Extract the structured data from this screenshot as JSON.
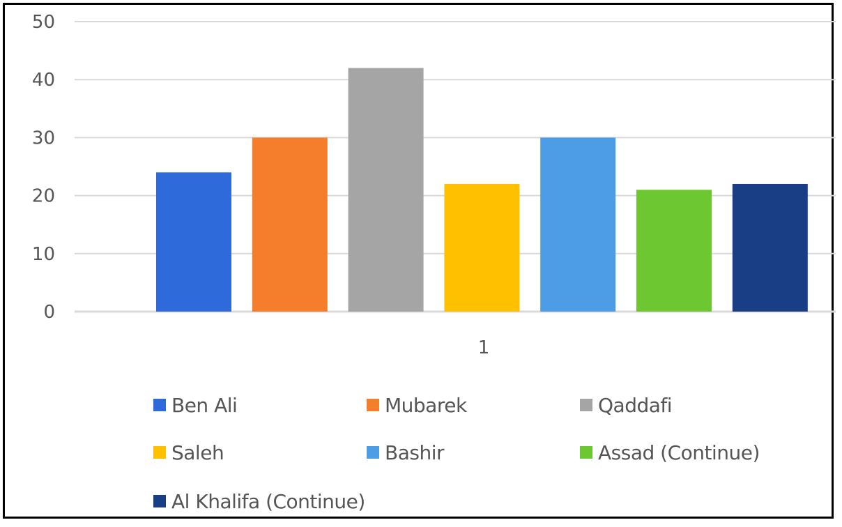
{
  "chart_data": {
    "type": "bar",
    "categories": [
      "1"
    ],
    "series": [
      {
        "name": "Ben Ali",
        "values": [
          24
        ],
        "color": "#2E6AD9"
      },
      {
        "name": "Mubarek",
        "values": [
          30
        ],
        "color": "#F47E2C"
      },
      {
        "name": "Qaddafi",
        "values": [
          42
        ],
        "color": "#A5A5A5"
      },
      {
        "name": "Saleh",
        "values": [
          22
        ],
        "color": "#FFC000"
      },
      {
        "name": "Bashir",
        "values": [
          30
        ],
        "color": "#4C9DE6"
      },
      {
        "name": "Assad (Continue)",
        "values": [
          21
        ],
        "color": "#6DC730"
      },
      {
        "name": "Al Khalifa (Continue)",
        "values": [
          22
        ],
        "color": "#1A3E85"
      }
    ],
    "y_ticks": [
      "0",
      "10",
      "20",
      "30",
      "40",
      "50"
    ],
    "ylim": [
      0,
      50
    ],
    "grid": true,
    "legend_position": "bottom",
    "gridline_color": "#D9D9D9"
  }
}
